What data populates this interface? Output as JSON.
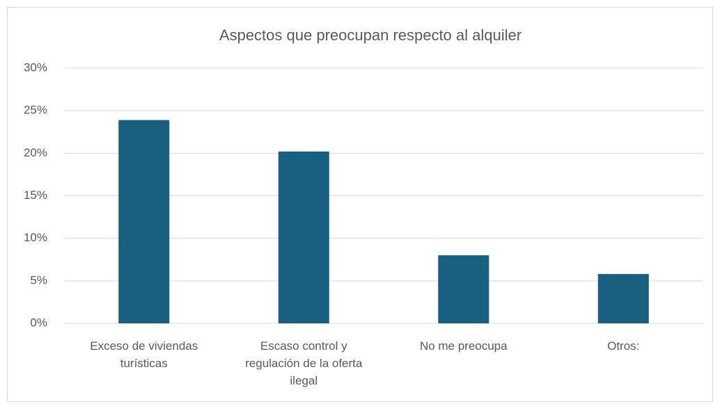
{
  "chart_data": {
    "type": "bar",
    "title": "Aspectos que preocupan respecto al alquiler",
    "categories": [
      "Exceso de viviendas turísticas",
      "Escaso control y regulación de la oferta ilegal",
      "No me preocupa",
      "Otros:"
    ],
    "values": [
      23.9,
      20.2,
      8.0,
      5.8
    ],
    "color": "#17607f",
    "ylim": [
      0,
      30
    ],
    "yticks": [
      {
        "value": 0,
        "label": "0%"
      },
      {
        "value": 5,
        "label": "5%"
      },
      {
        "value": 10,
        "label": "10%"
      },
      {
        "value": 15,
        "label": "15%"
      },
      {
        "value": 20,
        "label": "20%"
      },
      {
        "value": 25,
        "label": "25%"
      },
      {
        "value": 30,
        "label": "30%"
      }
    ],
    "grid": true
  }
}
